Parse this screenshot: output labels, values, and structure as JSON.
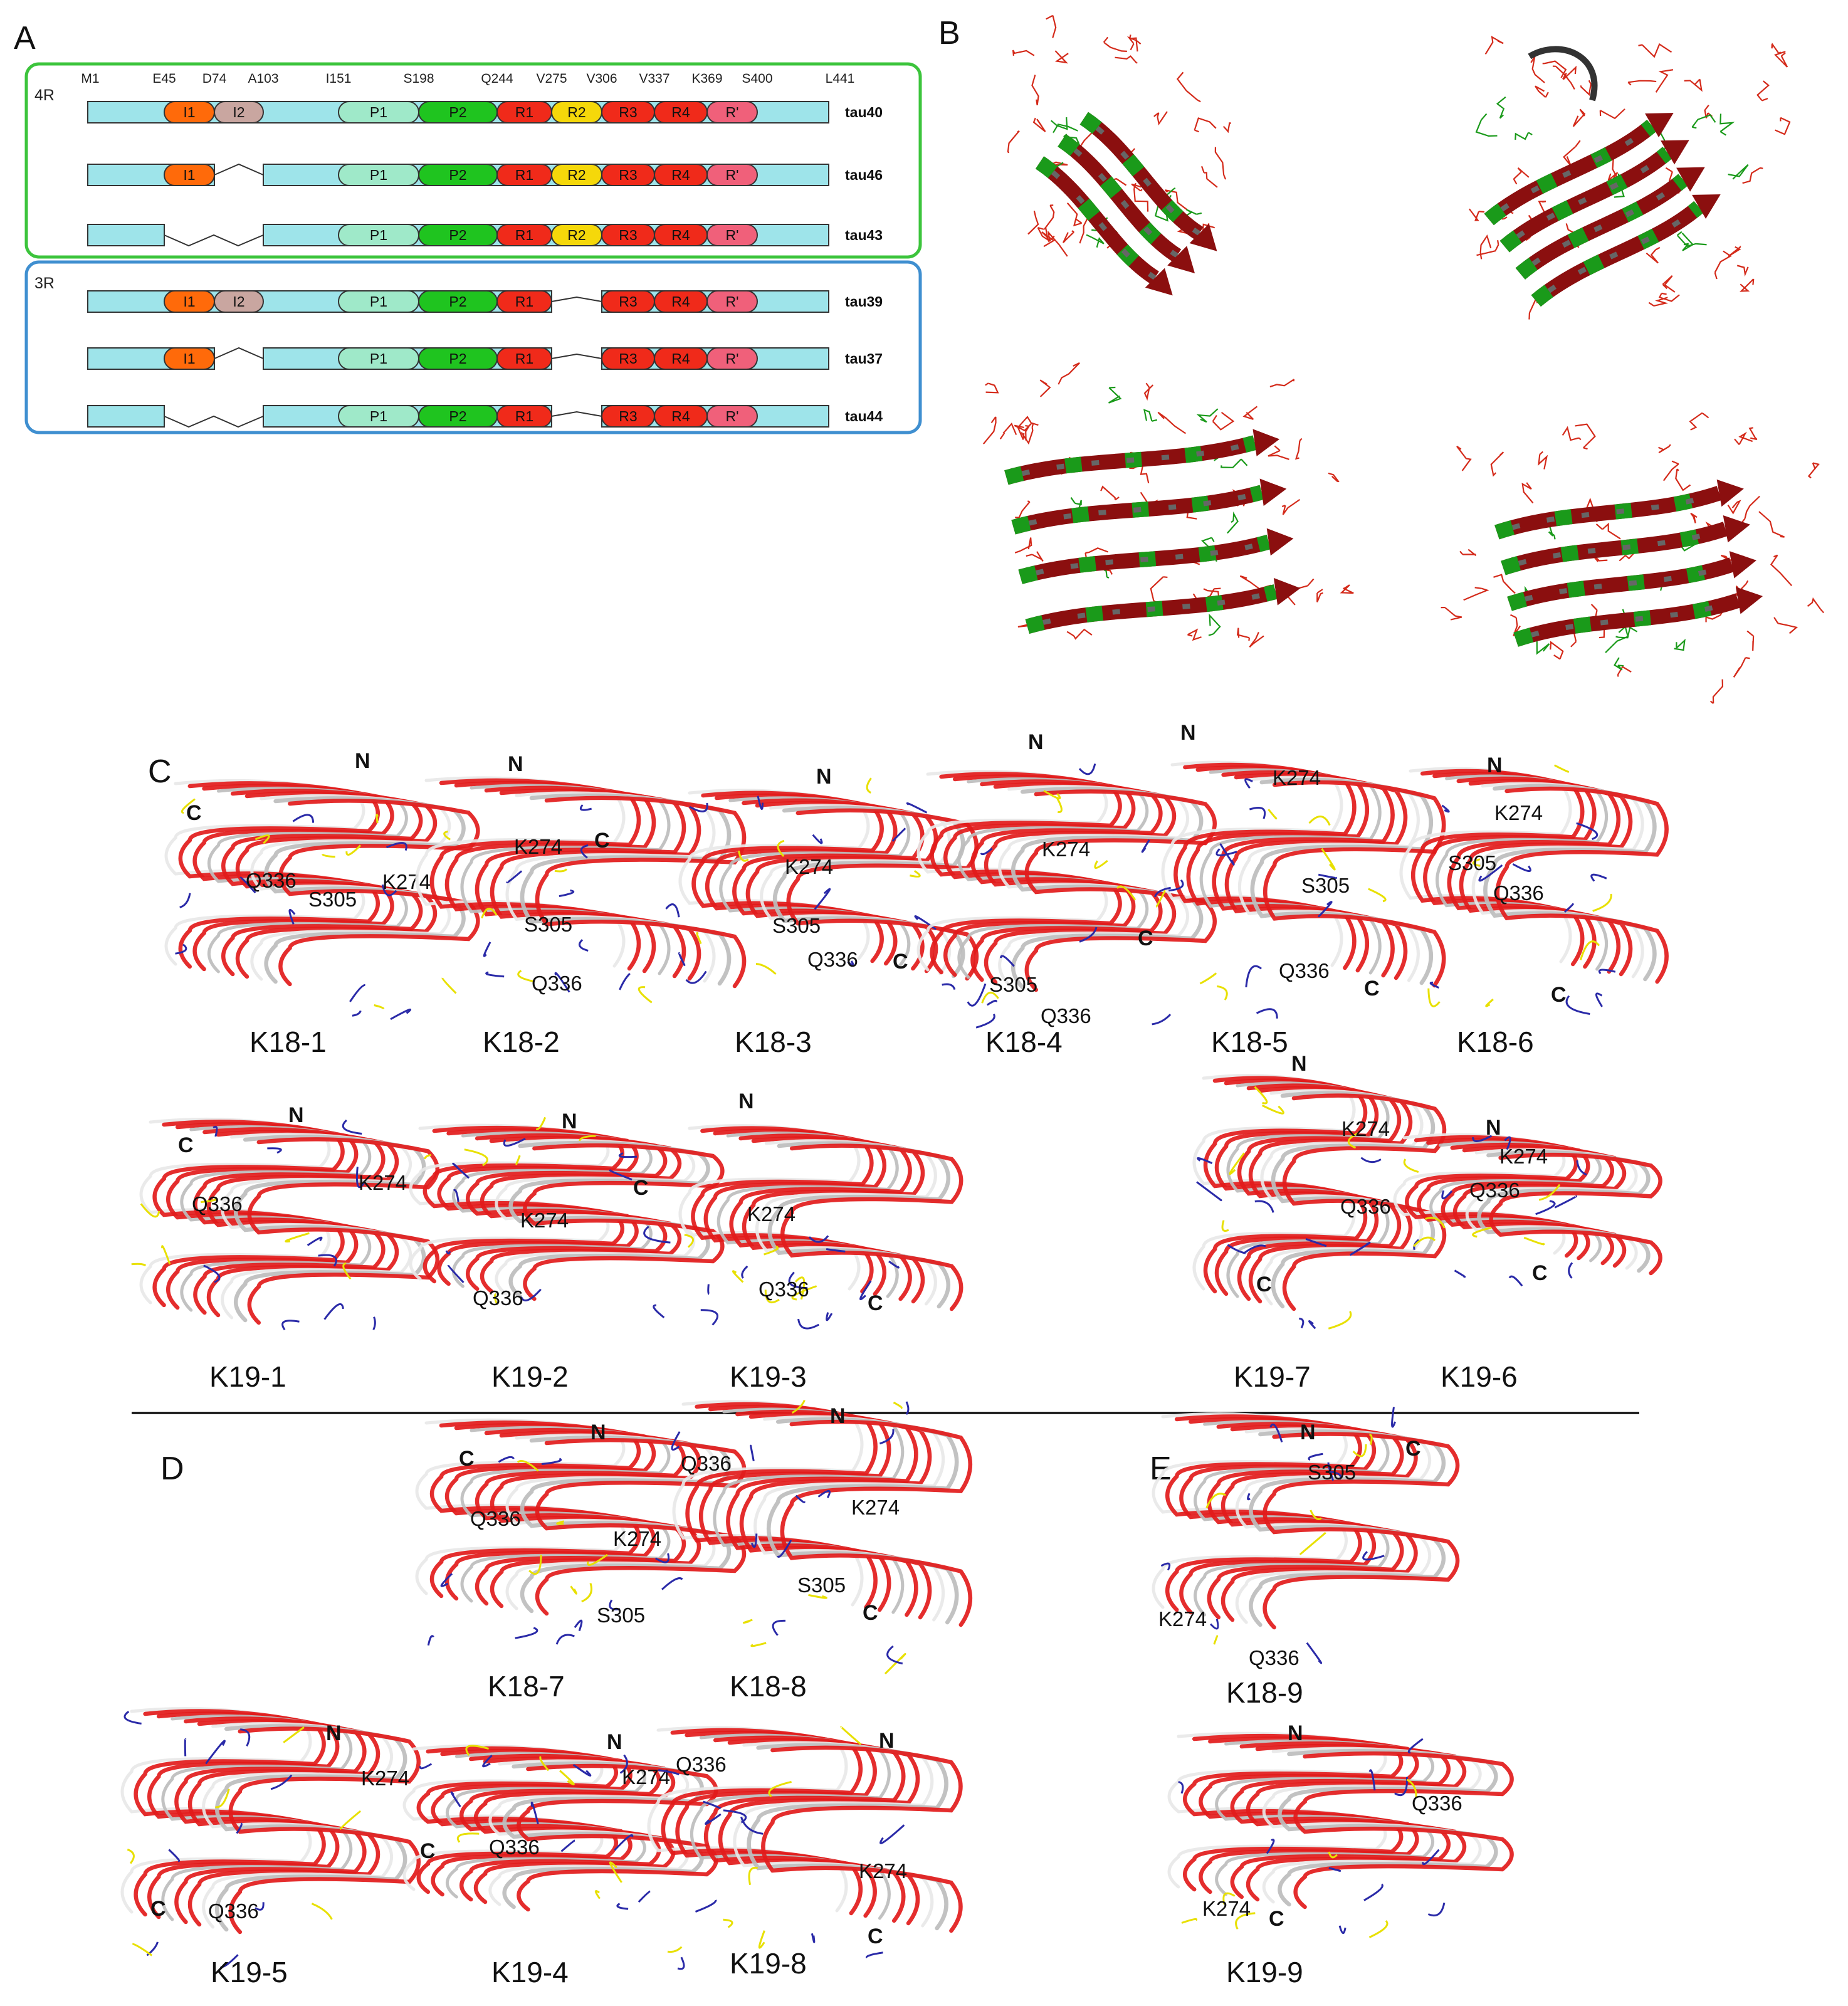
{
  "panels": {
    "A": "A",
    "B": "B",
    "C": "C",
    "D": "D",
    "E": "E"
  },
  "groups": {
    "four_r": "4R",
    "three_r": "3R"
  },
  "positions": [
    "M1",
    "E45",
    "D74",
    "A103",
    "I151",
    "S198",
    "Q244",
    "V275",
    "V306",
    "V337",
    "K369",
    "S400",
    "L441"
  ],
  "domain_colors": {
    "backbone": "#9ee4ea",
    "I1": "#ff6a0a",
    "I2": "#c9a6a0",
    "P1": "#9fe9c9",
    "P2": "#1fc41f",
    "R1": "#f02a1a",
    "R2": "#f5d80a",
    "R3": "#f02a1a",
    "R4": "#f02a1a",
    "R'": "#f0607a"
  },
  "isoforms": [
    {
      "name": "tau40",
      "group": "4R",
      "domains": [
        "I1",
        "I2",
        "P1",
        "P2",
        "R1",
        "R2",
        "R3",
        "R4",
        "R'"
      ]
    },
    {
      "name": "tau46",
      "group": "4R",
      "domains": [
        "I1",
        "P1",
        "P2",
        "R1",
        "R2",
        "R3",
        "R4",
        "R'"
      ]
    },
    {
      "name": "tau43",
      "group": "4R",
      "domains": [
        "P1",
        "P2",
        "R1",
        "R2",
        "R3",
        "R4",
        "R'"
      ]
    },
    {
      "name": "tau39",
      "group": "3R",
      "domains": [
        "I1",
        "I2",
        "P1",
        "P2",
        "R1",
        "R3",
        "R4",
        "R'"
      ]
    },
    {
      "name": "tau37",
      "group": "3R",
      "domains": [
        "I1",
        "P1",
        "P2",
        "R1",
        "R3",
        "R4",
        "R'"
      ]
    },
    {
      "name": "tau44",
      "group": "3R",
      "domains": [
        "P1",
        "P2",
        "R1",
        "R3",
        "R4",
        "R'"
      ]
    }
  ],
  "structure_colors": {
    "ribbon_red": "#e21b1b",
    "ribbon_white": "#e8e8e8",
    "loop_blue": "#2a2aa8",
    "loop_yellow": "#e8e000",
    "b_red": "#d42a1a",
    "b_green": "#1a9a1a",
    "b_darkred": "#8b0f0f",
    "b_gray": "#666666"
  },
  "structures": [
    {
      "id": "K18-1",
      "caption": "K18-1",
      "N": "N",
      "C": "C",
      "labels": [
        "Q336",
        "S305",
        "K274"
      ]
    },
    {
      "id": "K18-2",
      "caption": "K18-2",
      "N": "N",
      "C": "C",
      "labels": [
        "K274",
        "S305",
        "Q336"
      ]
    },
    {
      "id": "K18-3",
      "caption": "K18-3",
      "N": "N",
      "C": "C",
      "labels": [
        "K274",
        "S305",
        "Q336"
      ]
    },
    {
      "id": "K18-4",
      "caption": "K18-4",
      "N": "N",
      "C": "C",
      "labels": [
        "K274",
        "S305",
        "Q336"
      ]
    },
    {
      "id": "K18-5",
      "caption": "K18-5",
      "N": "N",
      "C": "C",
      "labels": [
        "K274",
        "S305",
        "Q336"
      ]
    },
    {
      "id": "K18-6",
      "caption": "K18-6",
      "N": "N",
      "C": "C",
      "labels": [
        "K274",
        "S305",
        "Q336"
      ]
    },
    {
      "id": "K19-1",
      "caption": "K19-1",
      "N": "N",
      "C": "C",
      "labels": [
        "Q336",
        "K274"
      ]
    },
    {
      "id": "K19-2",
      "caption": "K19-2",
      "N": "N",
      "C": "C",
      "labels": [
        "K274",
        "Q336"
      ]
    },
    {
      "id": "K19-3",
      "caption": "K19-3",
      "N": "N",
      "C": "C",
      "labels": [
        "K274",
        "Q336"
      ]
    },
    {
      "id": "K19-7",
      "caption": "K19-7",
      "N": "N",
      "C": "C",
      "labels": [
        "K274",
        "Q336"
      ]
    },
    {
      "id": "K19-6",
      "caption": "K19-6",
      "N": "N",
      "C": "C",
      "labels": [
        "K274",
        "Q336"
      ]
    },
    {
      "id": "K18-7",
      "caption": "K18-7",
      "N": "N",
      "C": "C",
      "labels": [
        "Q336",
        "K274",
        "S305"
      ]
    },
    {
      "id": "K18-8",
      "caption": "K18-8",
      "N": "N",
      "C": "C",
      "labels": [
        "Q336",
        "K274",
        "S305"
      ]
    },
    {
      "id": "K19-5",
      "caption": "K19-5",
      "N": "N",
      "C": "C",
      "labels": [
        "K274",
        "Q336"
      ]
    },
    {
      "id": "K19-4",
      "caption": "K19-4",
      "N": "N",
      "C": "C",
      "labels": [
        "K274",
        "Q336"
      ]
    },
    {
      "id": "K19-8",
      "caption": "K19-8",
      "N": "N",
      "C": "C",
      "labels": [
        "Q336",
        "K274"
      ]
    },
    {
      "id": "K18-9",
      "caption": "K18-9",
      "N": "N",
      "C": "C",
      "labels": [
        "S305",
        "K274",
        "Q336"
      ]
    },
    {
      "id": "K19-9",
      "caption": "K19-9",
      "N": "N",
      "C": "C",
      "labels": [
        "Q336",
        "K274"
      ]
    }
  ]
}
